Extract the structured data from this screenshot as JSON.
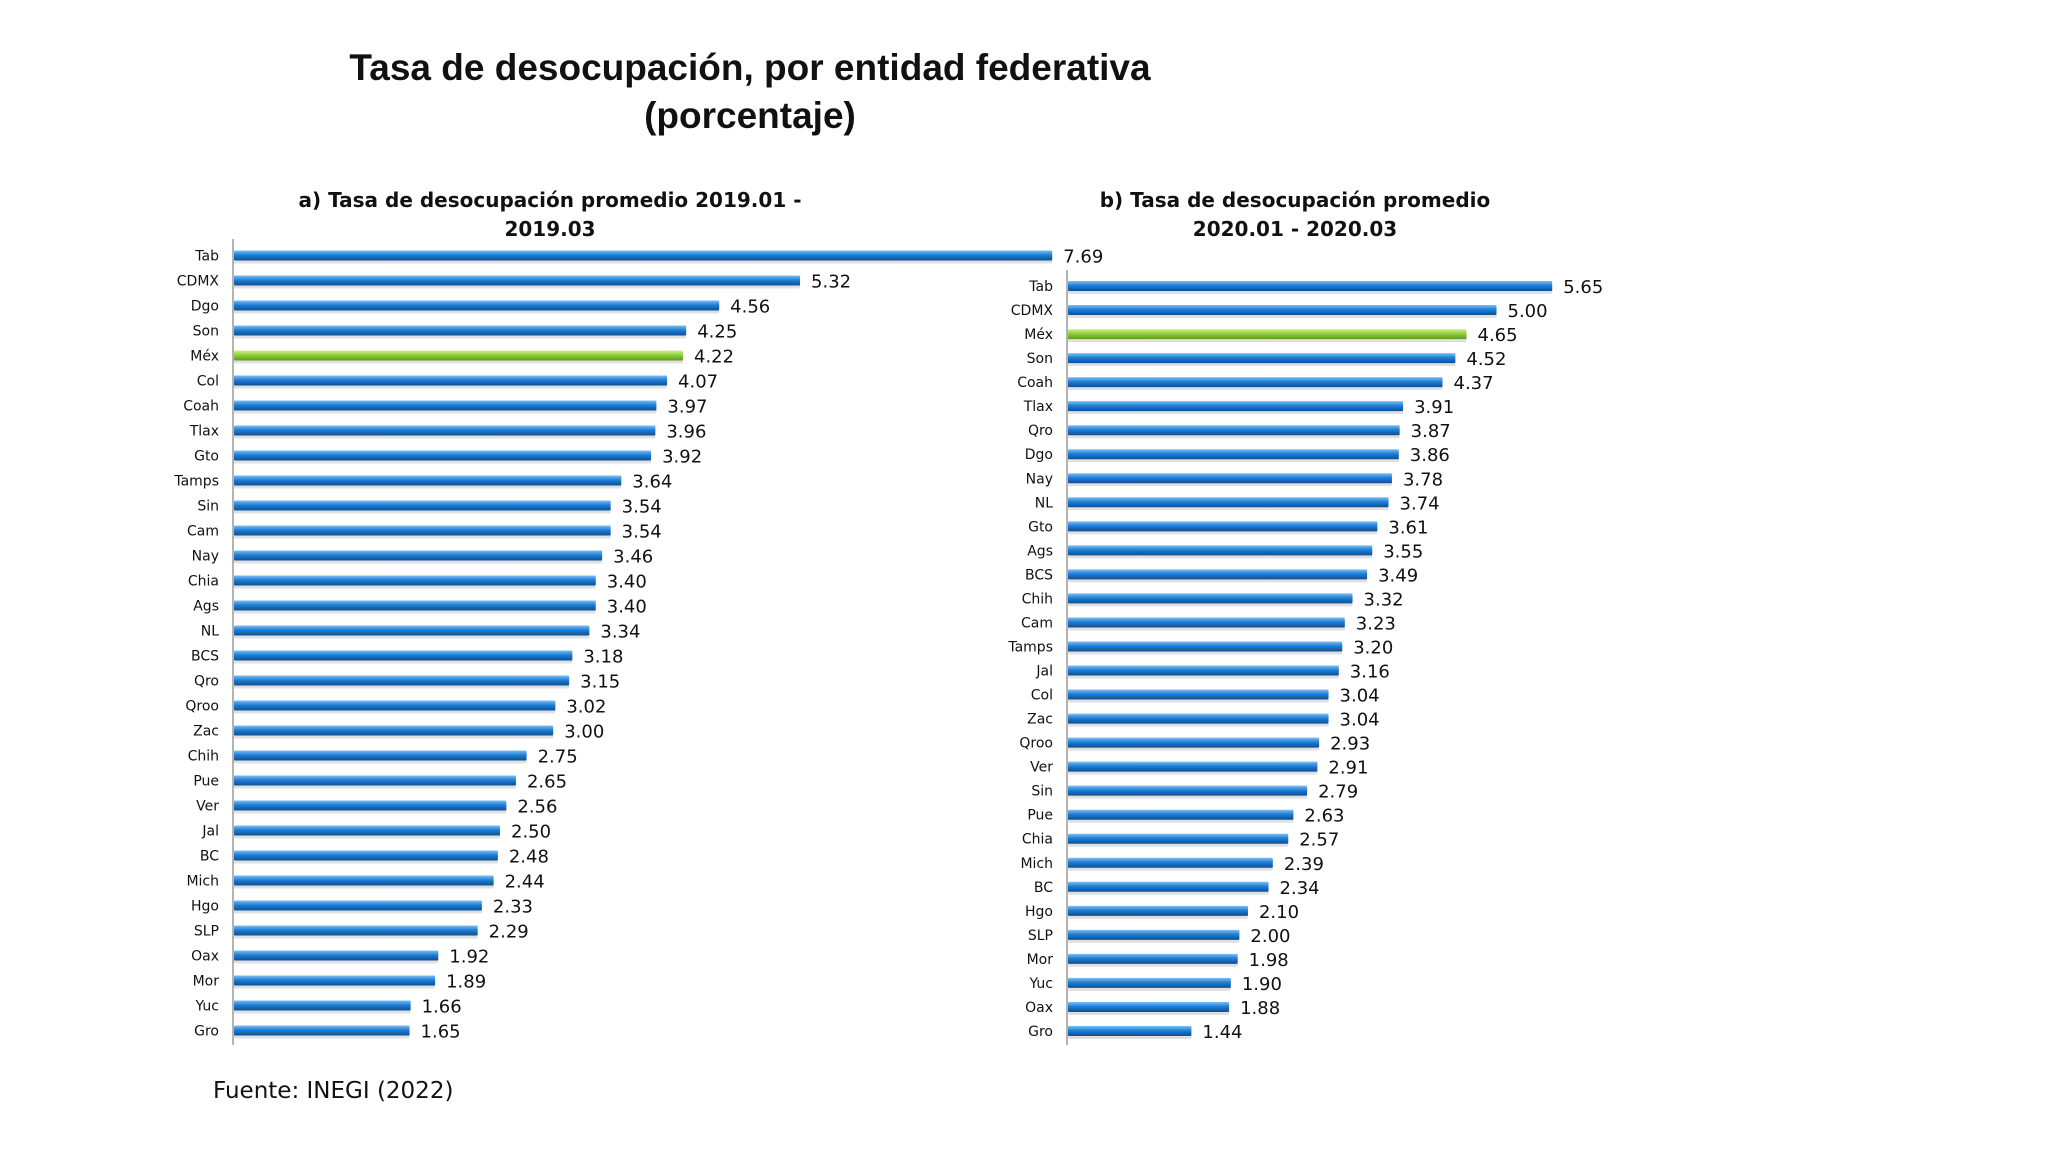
{
  "title_line1": "Tasa de desocupación, por entidad federativa",
  "title_line2": "(porcentaje)",
  "source": "Fuente: INEGI (2022)",
  "colors": {
    "bar": "#1f7fd6",
    "highlight": "#8ecf3c"
  },
  "chart_data": [
    {
      "type": "bar",
      "orientation": "horizontal",
      "title": "a) Tasa de desocupación promedio 2019.01 - 2019.03",
      "highlight": "Méx",
      "categories": [
        "Tab",
        "CDMX",
        "Dgo",
        "Son",
        "Méx",
        "Col",
        "Coah",
        "Tlax",
        "Gto",
        "Tamps",
        "Sin",
        "Cam",
        "Nay",
        "Chia",
        "Ags",
        "NL",
        "BCS",
        "Qro",
        "Qroo",
        "Zac",
        "Chih",
        "Pue",
        "Ver",
        "Jal",
        "BC",
        "Mich",
        "Hgo",
        "SLP",
        "Oax",
        "Mor",
        "Yuc",
        "Gro"
      ],
      "values": [
        7.69,
        5.32,
        4.56,
        4.25,
        4.22,
        4.07,
        3.97,
        3.96,
        3.92,
        3.64,
        3.54,
        3.54,
        3.46,
        3.4,
        3.4,
        3.34,
        3.18,
        3.15,
        3.02,
        3.0,
        2.75,
        2.65,
        2.56,
        2.5,
        2.48,
        2.44,
        2.33,
        2.29,
        1.92,
        1.89,
        1.66,
        1.65
      ],
      "labels": [
        "7.69",
        "5.32",
        "4.56",
        "4.25",
        "4.22",
        "4.07",
        "3.97",
        "3.96",
        "3.92",
        "3.64",
        "3.54",
        "3.54",
        "3.46",
        "3.40",
        "3.40",
        "3.34",
        "3.18",
        "3.15",
        "3.02",
        "3.00",
        "2.75",
        "2.65",
        "2.56",
        "2.50",
        "2.48",
        "2.44",
        "2.33",
        "2.29",
        "1.92",
        "1.89",
        "1.66",
        "1.65"
      ]
    },
    {
      "type": "bar",
      "orientation": "horizontal",
      "title": "b) Tasa de desocupación promedio 2020.01 - 2020.03",
      "highlight": "Méx",
      "categories": [
        "Tab",
        "CDMX",
        "Méx",
        "Son",
        "Coah",
        "Tlax",
        "Qro",
        "Dgo",
        "Nay",
        "NL",
        "Gto",
        "Ags",
        "BCS",
        "Chih",
        "Cam",
        "Tamps",
        "Jal",
        "Col",
        "Zac",
        "Qroo",
        "Ver",
        "Sin",
        "Pue",
        "Chia",
        "Mich",
        "BC",
        "Hgo",
        "SLP",
        "Mor",
        "Yuc",
        "Oax",
        "Gro"
      ],
      "values": [
        5.65,
        5.0,
        4.65,
        4.52,
        4.37,
        3.91,
        3.87,
        3.86,
        3.78,
        3.74,
        3.61,
        3.55,
        3.49,
        3.32,
        3.23,
        3.2,
        3.16,
        3.04,
        3.04,
        2.93,
        2.91,
        2.79,
        2.63,
        2.57,
        2.39,
        2.34,
        2.1,
        2.0,
        1.98,
        1.9,
        1.88,
        1.44
      ],
      "labels": [
        "5.65",
        "5.00",
        "4.65",
        "4.52",
        "4.37",
        "3.91",
        "3.87",
        "3.86",
        "3.78",
        "3.74",
        "3.61",
        "3.55",
        "3.49",
        "3.32",
        "3.23",
        "3.20",
        "3.16",
        "3.04",
        "3.04",
        "2.93",
        "2.91",
        "2.79",
        "2.63",
        "2.57",
        "2.39",
        "2.34",
        "2.10",
        "2.00",
        "1.98",
        "1.90",
        "1.88",
        "1.44"
      ]
    }
  ]
}
